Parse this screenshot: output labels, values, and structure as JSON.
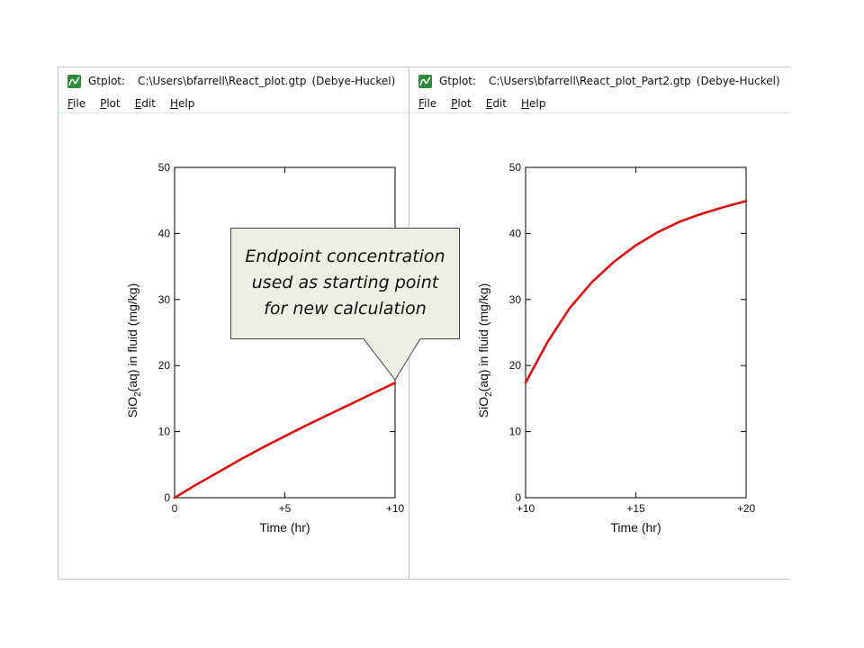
{
  "windows": [
    {
      "app": "Gtplot:",
      "path": "C:\\Users\\bfarrell\\React_plot.gtp",
      "mode": "(Debye-Huckel)",
      "menu": [
        {
          "acc": "F",
          "rest": "ile"
        },
        {
          "acc": "P",
          "rest": "lot"
        },
        {
          "acc": "E",
          "rest": "dit"
        },
        {
          "acc": "H",
          "rest": "elp"
        }
      ]
    },
    {
      "app": "Gtplot:",
      "path": "C:\\Users\\bfarrell\\React_plot_Part2.gtp",
      "mode": "(Debye-Huckel)",
      "menu": [
        {
          "acc": "F",
          "rest": "ile"
        },
        {
          "acc": "P",
          "rest": "lot"
        },
        {
          "acc": "E",
          "rest": "dit"
        },
        {
          "acc": "H",
          "rest": "elp"
        }
      ]
    }
  ],
  "callout": {
    "lines": [
      "Endpoint concentration",
      "used as starting point",
      "for new calculation"
    ],
    "fill": "#ecf0e4"
  },
  "chart_data": [
    {
      "type": "line",
      "xlabel": "Time (hr)",
      "ylabel_parts": [
        "SiO",
        "2",
        "(aq) in fluid (mg/kg)"
      ],
      "xlim": [
        0,
        10
      ],
      "ylim": [
        0,
        50
      ],
      "xticks": [
        0,
        5,
        10
      ],
      "xtick_labels": [
        "0",
        "+5",
        "+10"
      ],
      "yticks": [
        0,
        10,
        20,
        30,
        40,
        50
      ],
      "ytick_labels": [
        "0",
        "10",
        "20",
        "30",
        "40",
        "50"
      ],
      "series": [
        {
          "color": "#dd1111",
          "x": [
            0,
            1,
            2,
            3,
            4,
            5,
            6,
            7,
            8,
            9,
            10
          ],
          "y": [
            0,
            2.0,
            3.9,
            5.8,
            7.6,
            9.3,
            11.0,
            12.6,
            14.2,
            15.8,
            17.4
          ]
        }
      ]
    },
    {
      "type": "line",
      "xlabel": "Time (hr)",
      "ylabel_parts": [
        "SiO",
        "2",
        "(aq) in fluid (mg/kg)"
      ],
      "xlim": [
        10,
        20
      ],
      "ylim": [
        0,
        50
      ],
      "xticks": [
        10,
        15,
        20
      ],
      "xtick_labels": [
        "+10",
        "+15",
        "+20"
      ],
      "yticks": [
        0,
        10,
        20,
        30,
        40,
        50
      ],
      "ytick_labels": [
        "0",
        "10",
        "20",
        "30",
        "40",
        "50"
      ],
      "series": [
        {
          "color": "#dd1111",
          "x": [
            10,
            11,
            12,
            13,
            14,
            15,
            16,
            17,
            18,
            19,
            20
          ],
          "y": [
            17.4,
            23.6,
            28.7,
            32.6,
            35.7,
            38.2,
            40.2,
            41.8,
            43.0,
            44.0,
            44.9
          ]
        }
      ]
    }
  ]
}
